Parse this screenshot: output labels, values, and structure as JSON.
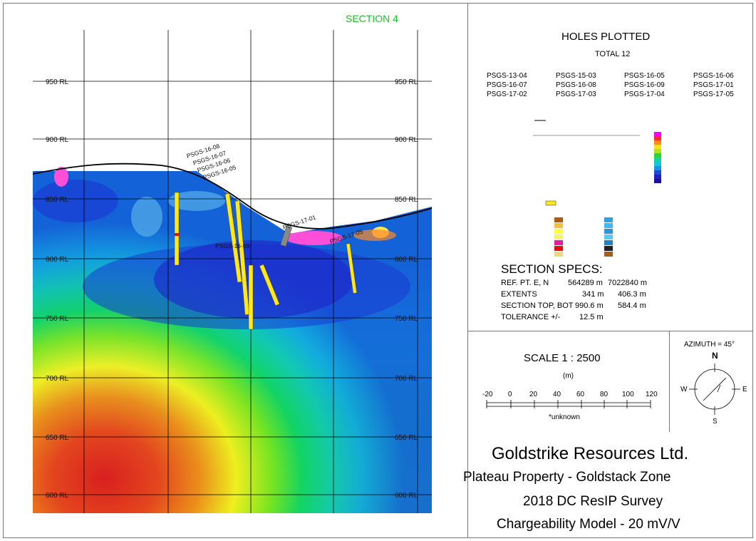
{
  "section_label": "SECTION 4",
  "holes": {
    "title": "HOLES PLOTTED",
    "total": "TOTAL 12",
    "list": [
      "PSGS-13-04",
      "PSGS-15-03",
      "PSGS-16-05",
      "PSGS-16-06",
      "PSGS-16-07",
      "PSGS-16-08",
      "PSGS-16-09",
      "PSGS-17-01",
      "PSGS-17-02",
      "PSGS-17-03",
      "PSGS-17-04",
      "PSGS-17-05"
    ]
  },
  "section_specs": {
    "title": "SECTION  SPECS:",
    "rows": [
      {
        "label": "REF. PT. E, N",
        "v1": "564289 m",
        "v2": "7022840 m"
      },
      {
        "label": "EXTENTS",
        "v1": "341 m",
        "v2": "406.3 m"
      },
      {
        "label": "SECTION TOP, BOT",
        "v1": "990.6 m",
        "v2": "584.4 m"
      },
      {
        "label": "TOLERANCE +/-",
        "v1": "12.5 m",
        "v2": ""
      }
    ]
  },
  "scale": {
    "title": "SCALE  1 : 2500",
    "unit": "(m)",
    "ticks": [
      "-20",
      "0",
      "20",
      "40",
      "60",
      "80",
      "100",
      "120"
    ],
    "note": "*unknown"
  },
  "compass": {
    "azimuth": "AZIMUTH = 45°",
    "n": "N",
    "e": "E",
    "s": "S",
    "w": "W"
  },
  "title_block": {
    "company": "Goldstrike Resources Ltd.",
    "line1": "Plateau Property - Goldstack Zone",
    "line2": "2018 DC  ResIP Survey",
    "line3": "Chargeability Model - 20 mV/V"
  },
  "elevation_labels": [
    "950 RL",
    "900 RL",
    "850 RL",
    "800 RL",
    "750 RL",
    "700 RL",
    "650 RL",
    "600 RL"
  ],
  "hole_labels_section": [
    "PSGS-16-08",
    "PSGS-16-07",
    "PSGS-16-06",
    "PSGS-16-05",
    "PSGS-17-01",
    "PSGS-17-05",
    "PSGS-16-09",
    "PSGS-17-02"
  ],
  "colors": {
    "section_label": "#22c02a",
    "frame": "#777777"
  }
}
